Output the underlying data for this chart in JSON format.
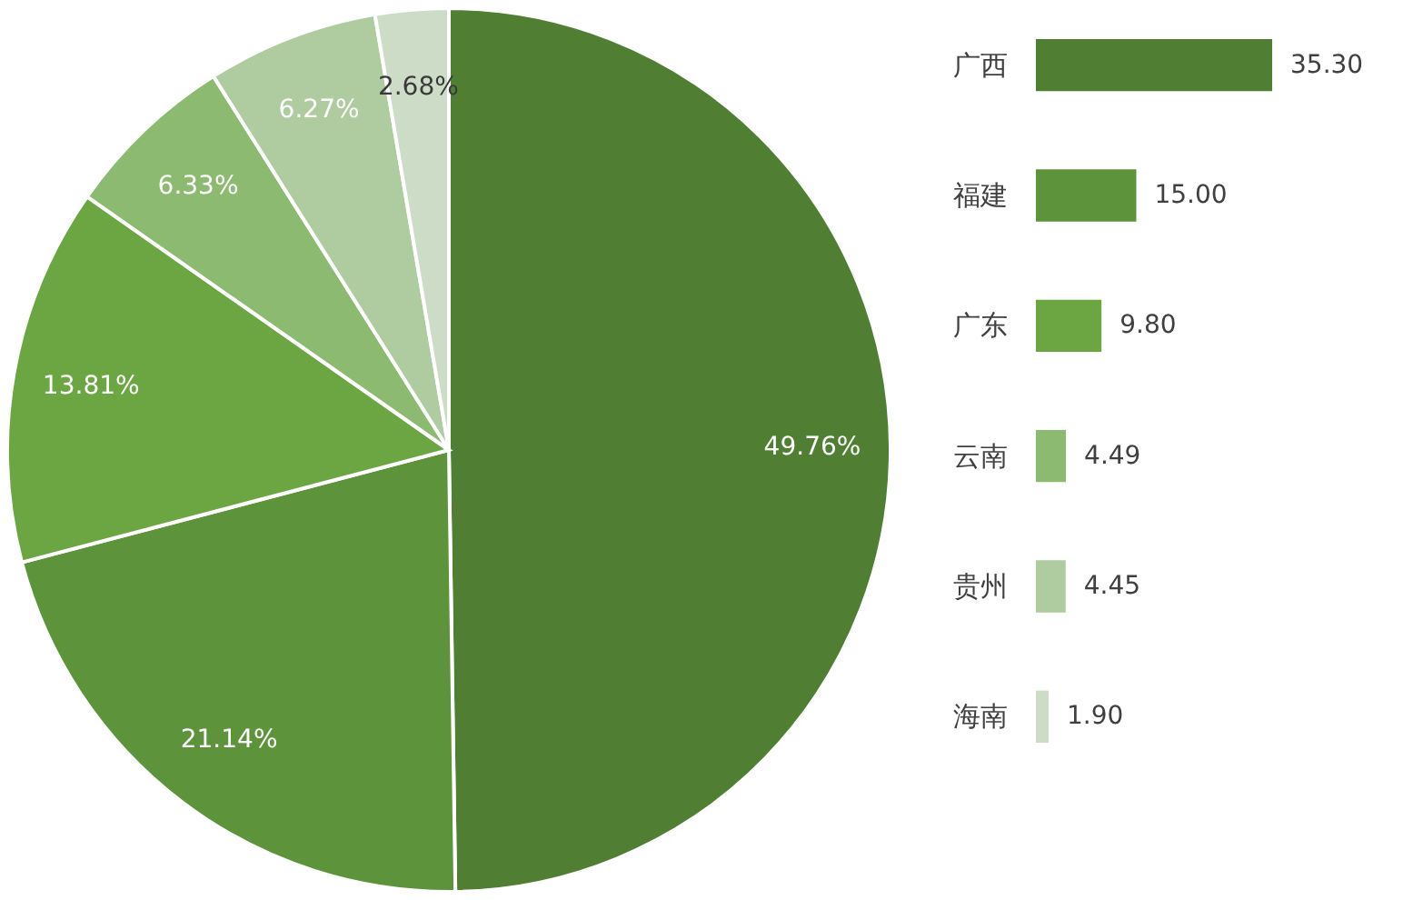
{
  "chart_data": [
    {
      "type": "pie",
      "categories": [
        null,
        null,
        null,
        null,
        null,
        null
      ],
      "values": [
        49.76,
        21.14,
        13.81,
        6.33,
        6.27,
        2.68
      ],
      "value_labels": [
        "49.76%",
        "21.14%",
        "13.81%",
        "6.33%",
        "6.27%",
        "2.68%"
      ],
      "colors": [
        "#507f33",
        "#5d943b",
        "#6ba643",
        "#8bba70",
        "#afcba0",
        "#cddcc6"
      ]
    },
    {
      "type": "bar",
      "orientation": "horizontal",
      "categories": [
        "广西",
        "福建",
        "广东",
        "云南",
        "贵州",
        "海南"
      ],
      "values": [
        35.3,
        15.0,
        9.8,
        4.49,
        4.45,
        1.9
      ],
      "value_labels": [
        "35.30",
        "15.00",
        "9.80",
        "4.49",
        "4.45",
        "1.90"
      ],
      "colors": [
        "#507f33",
        "#5d943b",
        "#6ba643",
        "#8bba70",
        "#afcba0",
        "#cddcc6"
      ],
      "tick_labels": "y"
    }
  ]
}
